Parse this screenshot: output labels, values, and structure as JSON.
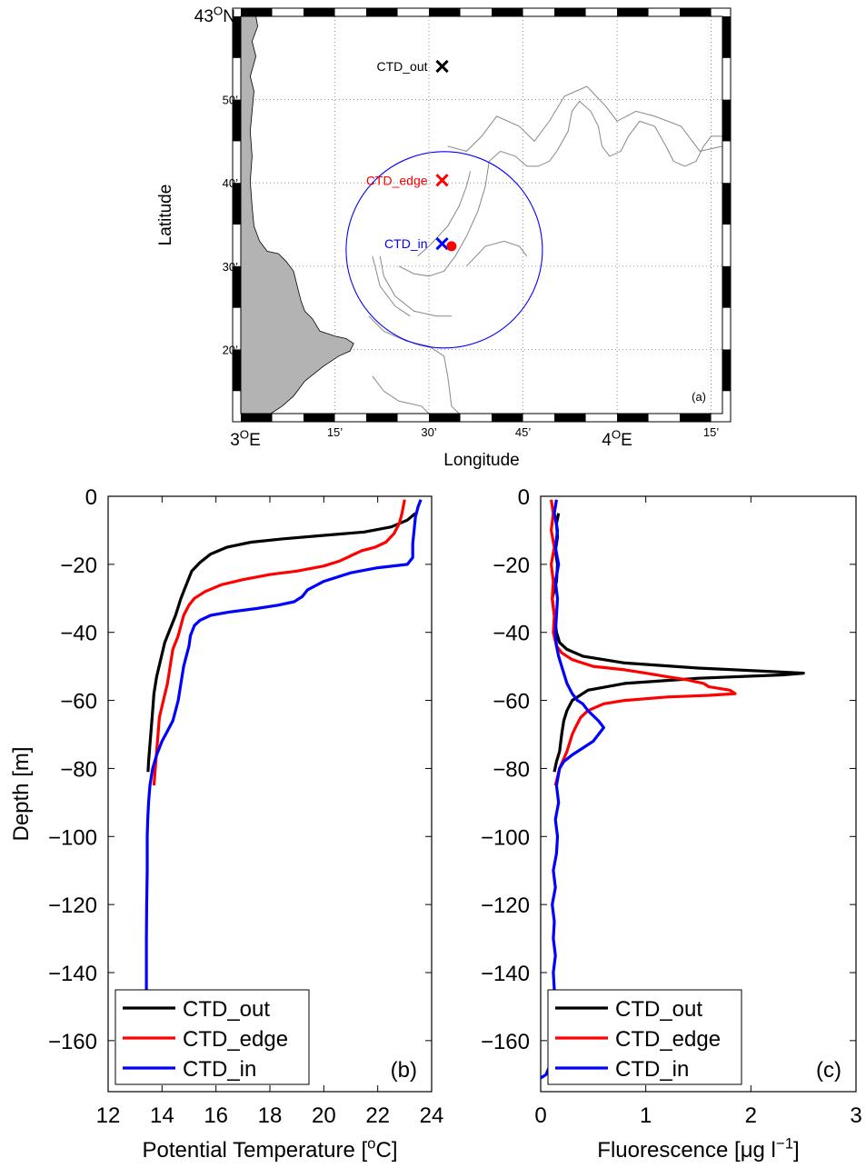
{
  "map": {
    "panel_label": "(a)",
    "xlabel": "Longitude",
    "ylabel": "Latitude",
    "x_ticks": [
      {
        "value": 3.0,
        "label": "3",
        "sup": "O",
        "suffix": "E",
        "big": true
      },
      {
        "value": 3.25,
        "label": "15’",
        "big": false
      },
      {
        "value": 3.5,
        "label": "30’",
        "big": false
      },
      {
        "value": 3.75,
        "label": "45’",
        "big": false
      },
      {
        "value": 4.0,
        "label": "4",
        "sup": "O",
        "suffix": "E",
        "big": true
      },
      {
        "value": 4.25,
        "label": "15’",
        "big": false
      }
    ],
    "y_ticks": [
      {
        "value": 43.0,
        "label": "43",
        "sup": "O",
        "suffix": "N",
        "big": true
      },
      {
        "value": 42.8333,
        "label": "50’",
        "big": false
      },
      {
        "value": 42.6667,
        "label": "40’",
        "big": false
      },
      {
        "value": 42.5,
        "label": "30’",
        "big": false
      },
      {
        "value": 42.3333,
        "label": "20’",
        "big": false
      }
    ],
    "xlim": [
      3.0,
      4.28
    ],
    "ylim": [
      42.205,
      43.0
    ],
    "stations": [
      {
        "name": "CTD_out",
        "lon": 3.535,
        "lat": 42.9,
        "color": "#000000"
      },
      {
        "name": "CTD_edge",
        "lon": 3.535,
        "lat": 42.672,
        "color": "#ff0000"
      },
      {
        "name": "CTD_in",
        "lon": 3.535,
        "lat": 42.545,
        "color": "#0000ff"
      }
    ],
    "eddy_center": {
      "lon": 3.56,
      "lat": 42.54,
      "color": "#ff0000"
    },
    "eddy_circle_color": "#0000ff",
    "land_color": "#b3b3b3",
    "isobath_color": "#888888"
  },
  "chart_data": [
    {
      "type": "line",
      "panel_label": "(b)",
      "xlabel": "Potential Temperature [",
      "xlabel_sup": "o",
      "xlabel_tail": "C]",
      "ylabel": "Depth [m]",
      "xlim": [
        12,
        24
      ],
      "ylim": [
        -175,
        0
      ],
      "x_ticks": [
        12,
        14,
        16,
        18,
        20,
        22,
        24
      ],
      "y_ticks": [
        0,
        -20,
        -40,
        -60,
        -80,
        -100,
        -120,
        -140,
        -160
      ],
      "y_tick_labels": [
        "0",
        "−20",
        "−40",
        "−60",
        "−80",
        "−100",
        "−120",
        "−140",
        "−160"
      ],
      "legend_position": "bottom-left",
      "series": [
        {
          "name": "CTD_out",
          "color": "#000000",
          "points": [
            [
              23.4,
              -5
            ],
            [
              23.1,
              -7
            ],
            [
              22.5,
              -9
            ],
            [
              21.5,
              -10.5
            ],
            [
              20,
              -11.5
            ],
            [
              18.5,
              -12.5
            ],
            [
              17.3,
              -13.5
            ],
            [
              16.4,
              -15
            ],
            [
              15.8,
              -17
            ],
            [
              15.4,
              -19.5
            ],
            [
              15.1,
              -22
            ],
            [
              15.0,
              -24
            ],
            [
              14.9,
              -26
            ],
            [
              14.7,
              -30
            ],
            [
              14.5,
              -35
            ],
            [
              14.3,
              -39
            ],
            [
              14.1,
              -43
            ],
            [
              13.95,
              -48
            ],
            [
              13.8,
              -53
            ],
            [
              13.7,
              -58
            ],
            [
              13.65,
              -63
            ],
            [
              13.6,
              -68
            ],
            [
              13.55,
              -73
            ],
            [
              13.5,
              -78
            ],
            [
              13.48,
              -81
            ]
          ]
        },
        {
          "name": "CTD_edge",
          "color": "#ff0000",
          "points": [
            [
              23.0,
              -1
            ],
            [
              22.95,
              -3
            ],
            [
              22.9,
              -5
            ],
            [
              22.8,
              -8
            ],
            [
              22.6,
              -11
            ],
            [
              22.3,
              -13.5
            ],
            [
              21.9,
              -15
            ],
            [
              21.4,
              -16
            ],
            [
              21.0,
              -17.5
            ],
            [
              20.6,
              -19
            ],
            [
              20.0,
              -20.5
            ],
            [
              19.0,
              -22
            ],
            [
              18.0,
              -23
            ],
            [
              17.0,
              -24.5
            ],
            [
              16.2,
              -26
            ],
            [
              15.6,
              -28
            ],
            [
              15.2,
              -30
            ],
            [
              15.0,
              -32
            ],
            [
              14.8,
              -35
            ],
            [
              14.7,
              -38
            ],
            [
              14.6,
              -41
            ],
            [
              14.4,
              -45
            ],
            [
              14.3,
              -50
            ],
            [
              14.2,
              -55
            ],
            [
              14.05,
              -60
            ],
            [
              13.9,
              -65
            ],
            [
              13.85,
              -70
            ],
            [
              13.8,
              -75
            ],
            [
              13.75,
              -80
            ],
            [
              13.7,
              -85
            ]
          ]
        },
        {
          "name": "CTD_in",
          "color": "#0000ff",
          "points": [
            [
              23.6,
              -1
            ],
            [
              23.5,
              -3
            ],
            [
              23.4,
              -6
            ],
            [
              23.35,
              -10
            ],
            [
              23.3,
              -14
            ],
            [
              23.3,
              -18
            ],
            [
              23.1,
              -20
            ],
            [
              22.0,
              -21
            ],
            [
              21.0,
              -22.5
            ],
            [
              20.0,
              -25
            ],
            [
              19.4,
              -27.5
            ],
            [
              19.2,
              -29.5
            ],
            [
              18.9,
              -31
            ],
            [
              18.3,
              -32
            ],
            [
              17.5,
              -33
            ],
            [
              16.5,
              -34
            ],
            [
              15.8,
              -35
            ],
            [
              15.4,
              -36.5
            ],
            [
              15.2,
              -38
            ],
            [
              15.05,
              -41
            ],
            [
              15.0,
              -44
            ],
            [
              14.9,
              -47
            ],
            [
              14.8,
              -50
            ],
            [
              14.7,
              -55
            ],
            [
              14.6,
              -60
            ],
            [
              14.5,
              -63
            ],
            [
              14.4,
              -66
            ],
            [
              14.2,
              -69
            ],
            [
              14.0,
              -72
            ],
            [
              13.8,
              -76
            ],
            [
              13.65,
              -80
            ],
            [
              13.55,
              -85
            ],
            [
              13.5,
              -90
            ],
            [
              13.47,
              -95
            ],
            [
              13.45,
              -100
            ],
            [
              13.45,
              -110
            ],
            [
              13.43,
              -120
            ],
            [
              13.42,
              -130
            ],
            [
              13.42,
              -140
            ],
            [
              13.42,
              -145
            ]
          ]
        }
      ]
    },
    {
      "type": "line",
      "panel_label": "(c)",
      "xlabel": "Fluorescence [μg l",
      "xlabel_sup": "−1",
      "xlabel_tail": "]",
      "ylabel": "",
      "xlim": [
        0,
        3
      ],
      "ylim": [
        -175,
        0
      ],
      "x_ticks": [
        0,
        1,
        2,
        3
      ],
      "y_ticks": [
        0,
        -20,
        -40,
        -60,
        -80,
        -100,
        -120,
        -140,
        -160
      ],
      "y_tick_labels": [
        "0",
        "−20",
        "−40",
        "−60",
        "−80",
        "−100",
        "−120",
        "−140",
        "−160"
      ],
      "legend_position": "bottom-left",
      "series": [
        {
          "name": "CTD_out",
          "color": "#000000",
          "points": [
            [
              0.17,
              -5
            ],
            [
              0.15,
              -8
            ],
            [
              0.16,
              -12
            ],
            [
              0.14,
              -16
            ],
            [
              0.16,
              -20
            ],
            [
              0.15,
              -25
            ],
            [
              0.11,
              -30
            ],
            [
              0.13,
              -35
            ],
            [
              0.15,
              -40
            ],
            [
              0.18,
              -43
            ],
            [
              0.25,
              -45
            ],
            [
              0.4,
              -47
            ],
            [
              0.8,
              -49
            ],
            [
              1.5,
              -50.5
            ],
            [
              2.2,
              -51.5
            ],
            [
              2.5,
              -52
            ],
            [
              2.3,
              -52.5
            ],
            [
              1.5,
              -53.5
            ],
            [
              0.8,
              -55
            ],
            [
              0.45,
              -57
            ],
            [
              0.3,
              -60
            ],
            [
              0.25,
              -63
            ],
            [
              0.22,
              -66
            ],
            [
              0.2,
              -70
            ],
            [
              0.18,
              -75
            ],
            [
              0.15,
              -78
            ],
            [
              0.13,
              -81
            ]
          ]
        },
        {
          "name": "CTD_edge",
          "color": "#ff0000",
          "points": [
            [
              0.1,
              -1
            ],
            [
              0.12,
              -5
            ],
            [
              0.1,
              -10
            ],
            [
              0.13,
              -15
            ],
            [
              0.1,
              -20
            ],
            [
              0.12,
              -25
            ],
            [
              0.11,
              -30
            ],
            [
              0.13,
              -35
            ],
            [
              0.12,
              -40
            ],
            [
              0.15,
              -44
            ],
            [
              0.2,
              -46
            ],
            [
              0.3,
              -48
            ],
            [
              0.5,
              -50
            ],
            [
              0.8,
              -51
            ],
            [
              1.0,
              -52
            ],
            [
              1.2,
              -53
            ],
            [
              1.4,
              -54
            ],
            [
              1.55,
              -55
            ],
            [
              1.6,
              -56
            ],
            [
              1.8,
              -57
            ],
            [
              1.85,
              -58
            ],
            [
              1.6,
              -58.5
            ],
            [
              1.2,
              -59
            ],
            [
              0.8,
              -60
            ],
            [
              0.6,
              -61
            ],
            [
              0.45,
              -63
            ],
            [
              0.38,
              -65
            ],
            [
              0.33,
              -68
            ],
            [
              0.3,
              -70
            ],
            [
              0.28,
              -72
            ],
            [
              0.25,
              -75
            ],
            [
              0.18,
              -80
            ],
            [
              0.14,
              -85
            ]
          ]
        },
        {
          "name": "CTD_in",
          "color": "#0000ff",
          "points": [
            [
              0.15,
              -1
            ],
            [
              0.13,
              -5
            ],
            [
              0.16,
              -10
            ],
            [
              0.14,
              -15
            ],
            [
              0.17,
              -20
            ],
            [
              0.14,
              -25
            ],
            [
              0.16,
              -30
            ],
            [
              0.15,
              -35
            ],
            [
              0.14,
              -40
            ],
            [
              0.15,
              -44
            ],
            [
              0.17,
              -47
            ],
            [
              0.2,
              -50
            ],
            [
              0.25,
              -55
            ],
            [
              0.3,
              -58
            ],
            [
              0.35,
              -60
            ],
            [
              0.4,
              -61
            ],
            [
              0.45,
              -63
            ],
            [
              0.55,
              -66
            ],
            [
              0.6,
              -68
            ],
            [
              0.55,
              -70
            ],
            [
              0.5,
              -72
            ],
            [
              0.4,
              -74
            ],
            [
              0.3,
              -76
            ],
            [
              0.22,
              -78
            ],
            [
              0.18,
              -80
            ],
            [
              0.15,
              -85
            ],
            [
              0.17,
              -90
            ],
            [
              0.14,
              -95
            ],
            [
              0.16,
              -100
            ],
            [
              0.15,
              -105
            ],
            [
              0.12,
              -110
            ],
            [
              0.14,
              -115
            ],
            [
              0.11,
              -120
            ],
            [
              0.13,
              -125
            ],
            [
              0.12,
              -130
            ],
            [
              0.14,
              -135
            ],
            [
              0.12,
              -140
            ],
            [
              0.13,
              -145
            ],
            [
              0.12,
              -150
            ],
            [
              0.13,
              -155
            ],
            [
              0.11,
              -160
            ],
            [
              0.12,
              -165
            ],
            [
              0.05,
              -170
            ],
            [
              0.0,
              -171
            ]
          ]
        }
      ]
    }
  ]
}
